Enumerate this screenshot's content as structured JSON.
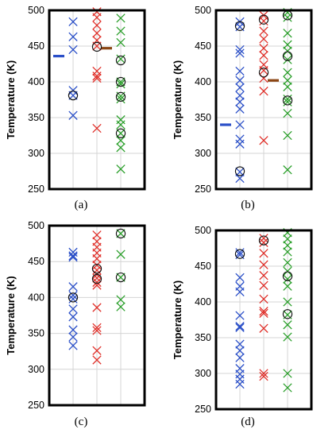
{
  "figure": {
    "colors": {
      "blue": "#2a4fc8",
      "red": "#e0302a",
      "green": "#2ca02c",
      "brown": "#8b4513",
      "grid": "#d4d4d4",
      "frame": "#000000"
    }
  },
  "chart_data": [
    {
      "type": "scatter",
      "panel_label": "(a)",
      "ylabel": "Temperature (K)",
      "ylim": [
        250,
        500
      ],
      "yticks": [
        "250",
        "300",
        "350",
        "400",
        "450",
        "500"
      ],
      "grid": true,
      "columns": [
        1,
        2,
        3
      ],
      "series": [
        {
          "color": "blue",
          "column": 1,
          "x_marks": [
            484,
            463,
            445,
            388,
            381,
            353
          ],
          "circled": [
            381
          ]
        },
        {
          "color": "red",
          "column": 2,
          "x_marks": [
            498,
            490,
            479,
            468,
            458,
            450,
            415,
            408,
            405,
            335
          ],
          "circled": [
            449
          ]
        },
        {
          "color": "green",
          "column": 3,
          "x_marks": [
            489,
            471,
            455,
            432,
            400,
            397,
            380,
            376,
            347,
            340,
            328,
            318,
            308,
            278
          ],
          "circled": [
            430,
            400,
            379,
            328
          ]
        }
      ],
      "bars": [
        {
          "color": "blue",
          "column": 0.4,
          "value": 436
        },
        {
          "color": "brown",
          "column": 2.4,
          "value": 447
        }
      ]
    },
    {
      "type": "scatter",
      "panel_label": "(b)",
      "ylabel": "Temperature (K)",
      "ylim": [
        250,
        500
      ],
      "yticks": [
        "250",
        "300",
        "350",
        "400",
        "450",
        "500"
      ],
      "grid": true,
      "columns": [
        1,
        2,
        3
      ],
      "series": [
        {
          "color": "blue",
          "column": 1,
          "x_marks": [
            484,
            477,
            445,
            440,
            415,
            402,
            392,
            381,
            372,
            362,
            340,
            320,
            313,
            274,
            265
          ],
          "circled": [
            478,
            275
          ]
        },
        {
          "color": "red",
          "column": 2,
          "x_marks": [
            493,
            485,
            471,
            460,
            447,
            437,
            424,
            416,
            405,
            387,
            318
          ],
          "circled": [
            487,
            413
          ]
        },
        {
          "color": "green",
          "column": 3,
          "x_marks": [
            497,
            490,
            468,
            452,
            443,
            431,
            413,
            402,
            393,
            376,
            372,
            356,
            325,
            277
          ],
          "circled": [
            493,
            436,
            374
          ]
        }
      ],
      "bars": [
        {
          "color": "blue",
          "column": 0.4,
          "value": 340
        },
        {
          "color": "brown",
          "column": 2.4,
          "value": 402
        }
      ]
    },
    {
      "type": "scatter",
      "panel_label": "(c)",
      "ylabel": "Temperature (K)",
      "ylim": [
        250,
        500
      ],
      "yticks": [
        "250",
        "300",
        "350",
        "400",
        "450",
        "500"
      ],
      "grid": true,
      "columns": [
        1,
        2,
        3
      ],
      "series": [
        {
          "color": "blue",
          "column": 1,
          "x_marks": [
            463,
            458,
            456,
            415,
            403,
            398,
            384,
            373,
            355,
            345,
            333
          ],
          "circled": [
            400
          ]
        },
        {
          "color": "red",
          "column": 2,
          "x_marks": [
            487,
            478,
            470,
            462,
            454,
            445,
            438,
            432,
            427,
            421,
            417,
            386,
            358,
            354,
            326,
            313
          ],
          "circled": [
            440,
            426
          ]
        },
        {
          "color": "green",
          "column": 3,
          "x_marks": [
            489,
            460,
            428,
            397,
            387
          ],
          "circled": [
            489,
            428
          ]
        }
      ],
      "bars": []
    },
    {
      "type": "scatter",
      "panel_label": "(d)",
      "ylabel": "Temperature (K)",
      "ylim": [
        250,
        500
      ],
      "yticks": [
        "250",
        "300",
        "350",
        "400",
        "450",
        "500"
      ],
      "grid": true,
      "columns": [
        1,
        2,
        3
      ],
      "series": [
        {
          "color": "blue",
          "column": 1,
          "x_marks": [
            469,
            466,
            434,
            422,
            414,
            381,
            366,
            364,
            341,
            332,
            322,
            307,
            299,
            292,
            285
          ],
          "circled": [
            467
          ]
        },
        {
          "color": "red",
          "column": 2,
          "x_marks": [
            489,
            483,
            468,
            452,
            437,
            423,
            404,
            387,
            384,
            363,
            300,
            296
          ],
          "circled": [
            486
          ]
        },
        {
          "color": "green",
          "column": 3,
          "x_marks": [
            497,
            488,
            479,
            470,
            455,
            443,
            432,
            422,
            400,
            382,
            368,
            351,
            300,
            280
          ],
          "circled": [
            436,
            383
          ]
        }
      ],
      "bars": []
    }
  ]
}
